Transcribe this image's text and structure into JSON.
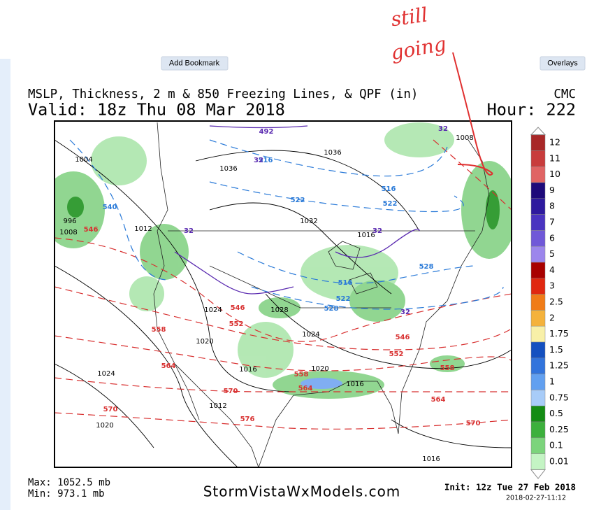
{
  "toolbar": {
    "left_button": "Add Bookmark",
    "right_button": "Overlays"
  },
  "annotation": [
    "still",
    "going"
  ],
  "header": {
    "title": "MSLP, Thickness, 2 m & 850 Freezing Lines, & QPF (in)",
    "model": "CMC",
    "valid": "Valid: 18z Thu 08 Mar 2018",
    "hour": "Hour: 222"
  },
  "legend": {
    "levels": [
      12,
      11,
      10,
      9,
      8,
      7,
      6,
      5,
      4,
      3,
      2.5,
      2,
      1.75,
      1.5,
      1.25,
      1,
      0.75,
      0.5,
      0.25,
      0.1,
      0.01
    ],
    "colors": [
      "#a82828",
      "#c83c3c",
      "#e06464",
      "#1e0a7a",
      "#2e1a9e",
      "#4a34c0",
      "#7058d8",
      "#9c86ec",
      "#a80000",
      "#e02810",
      "#f07c18",
      "#f4b23c",
      "#f8f0a8",
      "#1450c0",
      "#3274dc",
      "#62a0f0",
      "#a8ccf8",
      "#148c14",
      "#3cb03c",
      "#7cd47c",
      "#c4f4c4"
    ]
  },
  "map": {
    "labels": [
      {
        "text": "1004",
        "color": "#000"
      },
      {
        "text": "540",
        "color": "#2a7ad8"
      },
      {
        "text": "996",
        "color": "#000"
      },
      {
        "text": "1008",
        "color": "#000"
      },
      {
        "text": "546",
        "color": "#d83030"
      },
      {
        "text": "1012",
        "color": "#000"
      },
      {
        "text": "1036",
        "color": "#000"
      },
      {
        "text": "1032",
        "color": "#000"
      },
      {
        "text": "522",
        "color": "#2a7ad8"
      },
      {
        "text": "522",
        "color": "#2a7ad8"
      },
      {
        "text": "516",
        "color": "#2a7ad8"
      },
      {
        "text": "516",
        "color": "#2a7ad8"
      },
      {
        "text": "1036",
        "color": "#000"
      },
      {
        "text": "1016",
        "color": "#000"
      },
      {
        "text": "528",
        "color": "#2a7ad8"
      },
      {
        "text": "522",
        "color": "#2a7ad8"
      },
      {
        "text": "528",
        "color": "#2a7ad8"
      },
      {
        "text": "516",
        "color": "#2a7ad8"
      },
      {
        "text": "1028",
        "color": "#000"
      },
      {
        "text": "1024",
        "color": "#000"
      },
      {
        "text": "546",
        "color": "#d83030"
      },
      {
        "text": "552",
        "color": "#d83030"
      },
      {
        "text": "558",
        "color": "#d83030"
      },
      {
        "text": "1024",
        "color": "#000"
      },
      {
        "text": "1020",
        "color": "#000"
      },
      {
        "text": "546",
        "color": "#d83030"
      },
      {
        "text": "552",
        "color": "#d83030"
      },
      {
        "text": "558",
        "color": "#d83030"
      },
      {
        "text": "564",
        "color": "#d83030"
      },
      {
        "text": "1016",
        "color": "#000"
      },
      {
        "text": "1020",
        "color": "#000"
      },
      {
        "text": "558",
        "color": "#d83030"
      },
      {
        "text": "564",
        "color": "#d83030"
      },
      {
        "text": "1016",
        "color": "#000"
      },
      {
        "text": "1024",
        "color": "#000"
      },
      {
        "text": "570",
        "color": "#d83030"
      },
      {
        "text": "570",
        "color": "#d83030"
      },
      {
        "text": "1012",
        "color": "#000"
      },
      {
        "text": "1020",
        "color": "#000"
      },
      {
        "text": "576",
        "color": "#d83030"
      },
      {
        "text": "564",
        "color": "#d83030"
      },
      {
        "text": "570",
        "color": "#d83030"
      },
      {
        "text": "1016",
        "color": "#000"
      },
      {
        "text": "1008",
        "color": "#000"
      },
      {
        "text": "32",
        "color": "#5a2ab0"
      },
      {
        "text": "492",
        "color": "#5a2ab0"
      },
      {
        "text": "32",
        "color": "#5a2ab0"
      },
      {
        "text": "32",
        "color": "#5a2ab0"
      },
      {
        "text": "32",
        "color": "#5a2ab0"
      },
      {
        "text": "32",
        "color": "#5a2ab0"
      }
    ]
  },
  "footer": {
    "max": "Max: 1052.5 mb",
    "min": "Min: 973.1 mb",
    "site": "StormVistaWxModels.com",
    "init": "Init: 12z Tue 27 Feb 2018",
    "stamp": "2018-02-27-11:12"
  }
}
